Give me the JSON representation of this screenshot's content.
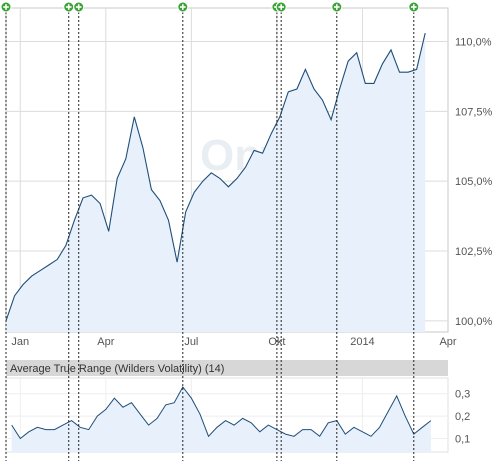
{
  "chart_data": [
    {
      "type": "area",
      "role": "price",
      "watermark": "Onvista",
      "y_axis_side": "right",
      "y_ticks": [
        100.0,
        102.5,
        105.0,
        107.5,
        110.0
      ],
      "y_tick_labels": [
        "100,0%",
        "102,5%",
        "105,0%",
        "107,5%",
        "110,0%"
      ],
      "ylim": [
        99.6,
        111.2
      ],
      "x_range": [
        0,
        15.5
      ],
      "x_ticks": [
        {
          "label": "Jan",
          "x": 0.5
        },
        {
          "label": "Apr",
          "x": 3.5
        },
        {
          "label": "Jul",
          "x": 6.5
        },
        {
          "label": "Okt",
          "x": 9.5
        },
        {
          "label": "2014",
          "x": 12.5
        },
        {
          "label": "Apr",
          "x": 15.5
        }
      ],
      "grid": true,
      "line_color": "#1f4e79",
      "fill_color": "#e8f1fb",
      "event_markers": [
        0.0,
        2.2,
        2.55,
        6.2,
        9.5,
        9.65,
        11.6,
        14.3
      ],
      "marker_icon": "plus-circle-icon",
      "marker_color": "#3aa335",
      "series": [
        {
          "x": [
            0.0,
            0.3,
            0.6,
            0.9,
            1.2,
            1.5,
            1.8,
            2.1,
            2.4,
            2.7,
            3.0,
            3.3,
            3.6,
            3.9,
            4.2,
            4.5,
            4.8,
            5.1,
            5.4,
            5.7,
            6.0,
            6.3,
            6.6,
            6.9,
            7.2,
            7.5,
            7.8,
            8.1,
            8.4,
            8.7,
            9.0,
            9.3,
            9.6,
            9.9,
            10.2,
            10.5,
            10.8,
            11.1,
            11.4,
            11.7,
            12.0,
            12.3,
            12.6,
            12.9,
            13.2,
            13.5,
            13.8,
            14.1,
            14.4,
            14.7
          ],
          "values": [
            100.0,
            100.9,
            101.3,
            101.6,
            101.8,
            102.0,
            102.2,
            102.7,
            103.6,
            104.4,
            104.5,
            104.2,
            103.2,
            105.1,
            105.8,
            107.3,
            106.2,
            104.7,
            104.3,
            103.6,
            102.1,
            103.9,
            104.6,
            105.0,
            105.3,
            105.1,
            104.8,
            105.1,
            105.5,
            106.1,
            106.0,
            106.7,
            107.3,
            108.2,
            108.3,
            109.0,
            108.3,
            107.9,
            107.2,
            108.3,
            109.3,
            109.6,
            108.5,
            108.5,
            109.2,
            109.7,
            108.9,
            108.9,
            109.0,
            110.3
          ]
        }
      ]
    },
    {
      "type": "area",
      "role": "indicator",
      "title": "Average True Range (Wilders Volatility) (14)",
      "y_axis_side": "right",
      "y_ticks": [
        0.1,
        0.2,
        0.3
      ],
      "y_tick_labels": [
        "0,1",
        "0,2",
        "0,3"
      ],
      "ylim": [
        0.04,
        0.37
      ],
      "x_range": [
        0,
        15.5
      ],
      "grid": true,
      "line_color": "#1f4e79",
      "fill_color": "#e8f1fb",
      "series": [
        {
          "x": [
            0.2,
            0.5,
            0.8,
            1.1,
            1.4,
            1.7,
            2.0,
            2.3,
            2.6,
            2.9,
            3.2,
            3.5,
            3.8,
            4.1,
            4.4,
            4.7,
            5.0,
            5.3,
            5.6,
            5.9,
            6.2,
            6.5,
            6.8,
            7.1,
            7.4,
            7.7,
            8.0,
            8.3,
            8.6,
            8.9,
            9.2,
            9.5,
            9.8,
            10.1,
            10.4,
            10.7,
            11.0,
            11.3,
            11.6,
            11.9,
            12.2,
            12.5,
            12.8,
            13.1,
            13.4,
            13.7,
            14.0,
            14.3,
            14.6,
            14.9
          ],
          "values": [
            0.16,
            0.1,
            0.13,
            0.15,
            0.14,
            0.14,
            0.16,
            0.18,
            0.15,
            0.14,
            0.2,
            0.23,
            0.28,
            0.24,
            0.26,
            0.21,
            0.16,
            0.19,
            0.25,
            0.26,
            0.33,
            0.28,
            0.21,
            0.11,
            0.15,
            0.18,
            0.16,
            0.19,
            0.17,
            0.13,
            0.16,
            0.14,
            0.12,
            0.11,
            0.14,
            0.14,
            0.11,
            0.17,
            0.18,
            0.12,
            0.15,
            0.13,
            0.11,
            0.15,
            0.22,
            0.29,
            0.2,
            0.12,
            0.15,
            0.18
          ]
        }
      ]
    }
  ]
}
